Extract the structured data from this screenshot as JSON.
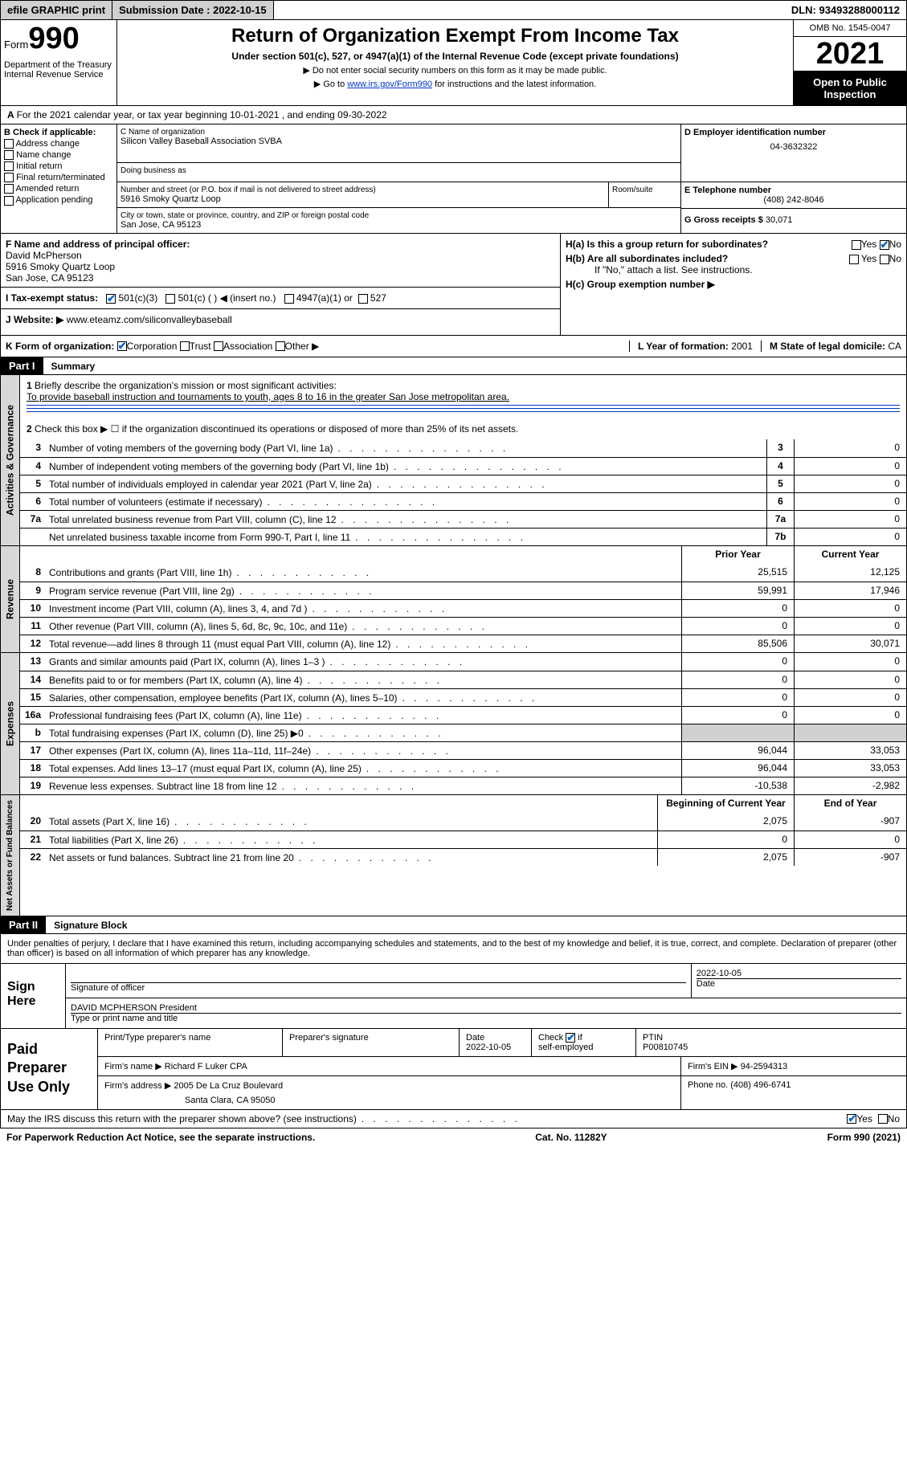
{
  "topbar": {
    "efile": "efile GRAPHIC print",
    "submission_label": "Submission Date : 2022-10-15",
    "dln": "DLN: 93493288000112"
  },
  "header": {
    "form_word": "Form",
    "form_num": "990",
    "title": "Return of Organization Exempt From Income Tax",
    "subtitle": "Under section 501(c), 527, or 4947(a)(1) of the Internal Revenue Code (except private foundations)",
    "note1": "▶ Do not enter social security numbers on this form as it may be made public.",
    "note2_pre": "▶ Go to ",
    "note2_link": "www.irs.gov/Form990",
    "note2_post": " for instructions and the latest information.",
    "dept": "Department of the Treasury\nInternal Revenue Service",
    "omb": "OMB No. 1545-0047",
    "year": "2021",
    "inspection": "Open to Public Inspection"
  },
  "section_a": "For the 2021 calendar year, or tax year beginning 10-01-2021   , and ending 09-30-2022",
  "col_b": {
    "label": "B Check if applicable:",
    "items": [
      "Address change",
      "Name change",
      "Initial return",
      "Final return/terminated",
      "Amended return",
      "Application pending"
    ]
  },
  "col_c": {
    "name_label": "C Name of organization",
    "name": "Silicon Valley Baseball Association SVBA",
    "dba_label": "Doing business as",
    "addr_label": "Number and street (or P.O. box if mail is not delivered to street address)",
    "room_label": "Room/suite",
    "addr": "5916 Smoky Quartz Loop",
    "city_label": "City or town, state or province, country, and ZIP or foreign postal code",
    "city": "San Jose, CA  95123"
  },
  "col_d": {
    "ein_label": "D Employer identification number",
    "ein": "04-3632322",
    "phone_label": "E Telephone number",
    "phone": "(408) 242-8046",
    "gross_label": "G Gross receipts $ ",
    "gross": "30,071"
  },
  "row_f": {
    "label": "F  Name and address of principal officer:",
    "name": "David McPherson",
    "addr1": "5916 Smoky Quartz Loop",
    "addr2": "San Jose, CA  95123"
  },
  "row_h": {
    "ha": "H(a)  Is this a group return for subordinates?",
    "hb": "H(b)  Are all subordinates included?",
    "hb_note": "If \"No,\" attach a list. See instructions.",
    "hc": "H(c)  Group exemption number ▶",
    "yes": "Yes",
    "no": "No"
  },
  "row_i": {
    "label": "I   Tax-exempt status:",
    "opt1": "501(c)(3)",
    "opt2": "501(c) (  ) ◀ (insert no.)",
    "opt3": "4947(a)(1) or",
    "opt4": "527"
  },
  "row_j": {
    "label": "J   Website: ▶",
    "value": "www.eteamz.com/siliconvalleybaseball"
  },
  "row_k": {
    "label": "K Form of organization:",
    "opts": [
      "Corporation",
      "Trust",
      "Association",
      "Other ▶"
    ],
    "l_label": "L Year of formation: ",
    "l_val": "2001",
    "m_label": "M State of legal domicile: ",
    "m_val": "CA"
  },
  "part1": {
    "header": "Part I",
    "title": "Summary",
    "q1": "Briefly describe the organization's mission or most significant activities:",
    "q1_ans": "To provide baseball instruction and tournaments to youth, ages 8 to 16 in the greater San Jose metropolitan area.",
    "q2": "Check this box ▶ ☐  if the organization discontinued its operations or disposed of more than 25% of its net assets."
  },
  "gov_rows": [
    {
      "n": "3",
      "d": "Number of voting members of the governing body (Part VI, line 1a)",
      "box": "3",
      "v": "0"
    },
    {
      "n": "4",
      "d": "Number of independent voting members of the governing body (Part VI, line 1b)",
      "box": "4",
      "v": "0"
    },
    {
      "n": "5",
      "d": "Total number of individuals employed in calendar year 2021 (Part V, line 2a)",
      "box": "5",
      "v": "0"
    },
    {
      "n": "6",
      "d": "Total number of volunteers (estimate if necessary)",
      "box": "6",
      "v": "0"
    },
    {
      "n": "7a",
      "d": "Total unrelated business revenue from Part VIII, column (C), line 12",
      "box": "7a",
      "v": "0"
    },
    {
      "n": "",
      "d": "Net unrelated business taxable income from Form 990-T, Part I, line 11",
      "box": "7b",
      "v": "0"
    }
  ],
  "two_col_header": {
    "prior": "Prior Year",
    "current": "Current Year",
    "begin": "Beginning of Current Year",
    "end": "End of Year"
  },
  "revenue_rows": [
    {
      "n": "8",
      "d": "Contributions and grants (Part VIII, line 1h)",
      "p": "25,515",
      "c": "12,125"
    },
    {
      "n": "9",
      "d": "Program service revenue (Part VIII, line 2g)",
      "p": "59,991",
      "c": "17,946"
    },
    {
      "n": "10",
      "d": "Investment income (Part VIII, column (A), lines 3, 4, and 7d )",
      "p": "0",
      "c": "0"
    },
    {
      "n": "11",
      "d": "Other revenue (Part VIII, column (A), lines 5, 6d, 8c, 9c, 10c, and 11e)",
      "p": "0",
      "c": "0"
    },
    {
      "n": "12",
      "d": "Total revenue—add lines 8 through 11 (must equal Part VIII, column (A), line 12)",
      "p": "85,506",
      "c": "30,071"
    }
  ],
  "expense_rows": [
    {
      "n": "13",
      "d": "Grants and similar amounts paid (Part IX, column (A), lines 1–3 )",
      "p": "0",
      "c": "0"
    },
    {
      "n": "14",
      "d": "Benefits paid to or for members (Part IX, column (A), line 4)",
      "p": "0",
      "c": "0"
    },
    {
      "n": "15",
      "d": "Salaries, other compensation, employee benefits (Part IX, column (A), lines 5–10)",
      "p": "0",
      "c": "0"
    },
    {
      "n": "16a",
      "d": "Professional fundraising fees (Part IX, column (A), line 11e)",
      "p": "0",
      "c": "0"
    },
    {
      "n": "b",
      "d": "Total fundraising expenses (Part IX, column (D), line 25) ▶0",
      "p": "",
      "c": "",
      "gray": true
    },
    {
      "n": "17",
      "d": "Other expenses (Part IX, column (A), lines 11a–11d, 11f–24e)",
      "p": "96,044",
      "c": "33,053"
    },
    {
      "n": "18",
      "d": "Total expenses. Add lines 13–17 (must equal Part IX, column (A), line 25)",
      "p": "96,044",
      "c": "33,053"
    },
    {
      "n": "19",
      "d": "Revenue less expenses. Subtract line 18 from line 12",
      "p": "-10,538",
      "c": "-2,982"
    }
  ],
  "asset_rows": [
    {
      "n": "20",
      "d": "Total assets (Part X, line 16)",
      "p": "2,075",
      "c": "-907"
    },
    {
      "n": "21",
      "d": "Total liabilities (Part X, line 26)",
      "p": "0",
      "c": "0"
    },
    {
      "n": "22",
      "d": "Net assets or fund balances. Subtract line 21 from line 20",
      "p": "2,075",
      "c": "-907"
    }
  ],
  "tabs": {
    "gov": "Activities & Governance",
    "rev": "Revenue",
    "exp": "Expenses",
    "net": "Net Assets or Fund Balances"
  },
  "part2": {
    "header": "Part II",
    "title": "Signature Block",
    "decl": "Under penalties of perjury, I declare that I have examined this return, including accompanying schedules and statements, and to the best of my knowledge and belief, it is true, correct, and complete. Declaration of preparer (other than officer) is based on all information of which preparer has any knowledge."
  },
  "sign": {
    "label": "Sign Here",
    "sig_label": "Signature of officer",
    "date": "2022-10-05",
    "date_label": "Date",
    "name": "DAVID MCPHERSON  President",
    "name_label": "Type or print name and title"
  },
  "preparer": {
    "label": "Paid Preparer Use Only",
    "h1": "Print/Type preparer's name",
    "h2": "Preparer's signature",
    "h3": "Date",
    "date": "2022-10-05",
    "h4": "Check ☑ if self-employed",
    "h5": "PTIN",
    "ptin": "P00810745",
    "firm_label": "Firm's name     ▶",
    "firm": "Richard F Luker CPA",
    "ein_label": "Firm's EIN ▶",
    "ein": "94-2594313",
    "addr_label": "Firm's address ▶",
    "addr1": "2005 De La Cruz Boulevard",
    "addr2": "Santa Clara, CA  95050",
    "phone_label": "Phone no.",
    "phone": "(408) 496-6741"
  },
  "footer": {
    "q": "May the IRS discuss this return with the preparer shown above? (see instructions)",
    "yes": "Yes",
    "no": "No",
    "paperwork": "For Paperwork Reduction Act Notice, see the separate instructions.",
    "cat": "Cat. No. 11282Y",
    "form": "Form 990 (2021)"
  }
}
